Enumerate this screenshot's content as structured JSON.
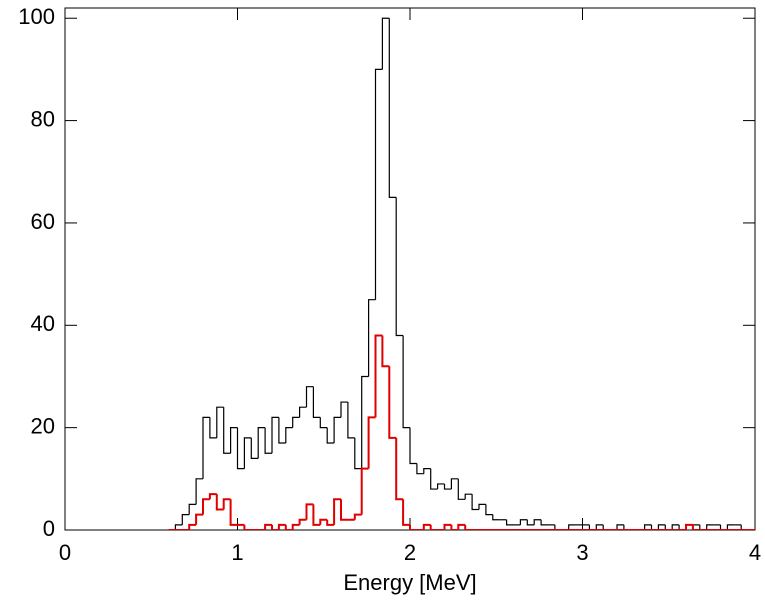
{
  "chart_data": {
    "type": "histogram",
    "x_label": "Energy [MeV]",
    "bins": [
      0.6,
      0.64,
      0.68,
      0.72,
      0.76,
      0.8,
      0.84,
      0.88,
      0.92,
      0.96,
      1.0,
      1.04,
      1.08,
      1.12,
      1.16,
      1.2,
      1.24,
      1.28,
      1.32,
      1.36,
      1.4,
      1.44,
      1.48,
      1.52,
      1.56,
      1.6,
      1.64,
      1.68,
      1.72,
      1.76,
      1.8,
      1.84,
      1.88,
      1.92,
      1.96,
      2.0,
      2.04,
      2.08,
      2.12,
      2.16,
      2.2,
      2.24,
      2.28,
      2.32,
      2.36,
      2.4,
      2.44,
      2.48,
      2.52,
      2.56,
      2.6,
      2.64,
      2.68,
      2.72,
      2.76,
      2.8,
      2.84,
      2.88,
      2.92,
      2.96,
      3.0,
      3.04,
      3.08,
      3.12,
      3.16,
      3.2,
      3.24,
      3.28,
      3.32,
      3.36,
      3.4,
      3.44,
      3.48,
      3.52,
      3.56,
      3.6,
      3.64,
      3.68,
      3.72,
      3.76,
      3.8,
      3.84,
      3.88,
      3.92,
      3.96,
      4.0
    ],
    "series": [
      {
        "color": "#000000",
        "values": [
          0,
          1,
          3,
          5,
          10,
          22,
          18,
          24,
          15,
          20,
          12,
          18,
          14,
          20,
          15,
          22,
          17,
          20,
          22,
          24,
          28,
          22,
          20,
          17,
          22,
          25,
          18,
          12,
          30,
          45,
          90,
          100,
          65,
          38,
          20,
          13,
          11,
          12,
          8,
          9,
          8,
          10,
          6,
          7,
          4,
          5,
          3,
          2,
          2,
          1,
          1,
          2,
          1,
          2,
          1,
          1,
          0,
          0,
          1,
          1,
          1,
          0,
          1,
          0,
          0,
          1,
          0,
          0,
          0,
          1,
          0,
          1,
          0,
          1,
          0,
          1,
          1,
          0,
          1,
          1,
          0,
          1,
          1,
          0,
          0
        ]
      },
      {
        "color": "#e00000",
        "values": [
          0,
          0,
          0,
          1,
          3,
          6,
          7,
          4,
          6,
          1,
          1,
          0,
          0,
          0,
          1,
          0,
          1,
          0,
          1,
          2,
          5,
          1,
          2,
          1,
          6,
          2,
          2,
          3,
          12,
          22,
          38,
          32,
          18,
          6,
          1,
          0,
          0,
          1,
          0,
          0,
          1,
          0,
          1,
          0,
          0,
          0,
          0,
          0,
          0,
          0,
          0,
          0,
          0,
          0,
          0,
          0,
          0,
          0,
          0,
          0,
          0,
          0,
          0,
          0,
          0,
          0,
          0,
          0,
          0,
          0,
          0,
          0,
          0,
          0,
          0,
          1,
          0,
          0,
          0,
          0,
          0,
          0,
          0,
          0,
          0
        ]
      }
    ],
    "xlim": [
      0,
      4
    ],
    "xticks": [
      0,
      1,
      2,
      3,
      4
    ],
    "ylim": [
      0,
      102
    ],
    "yticks": [
      0,
      20,
      40,
      60,
      80,
      100
    ]
  }
}
